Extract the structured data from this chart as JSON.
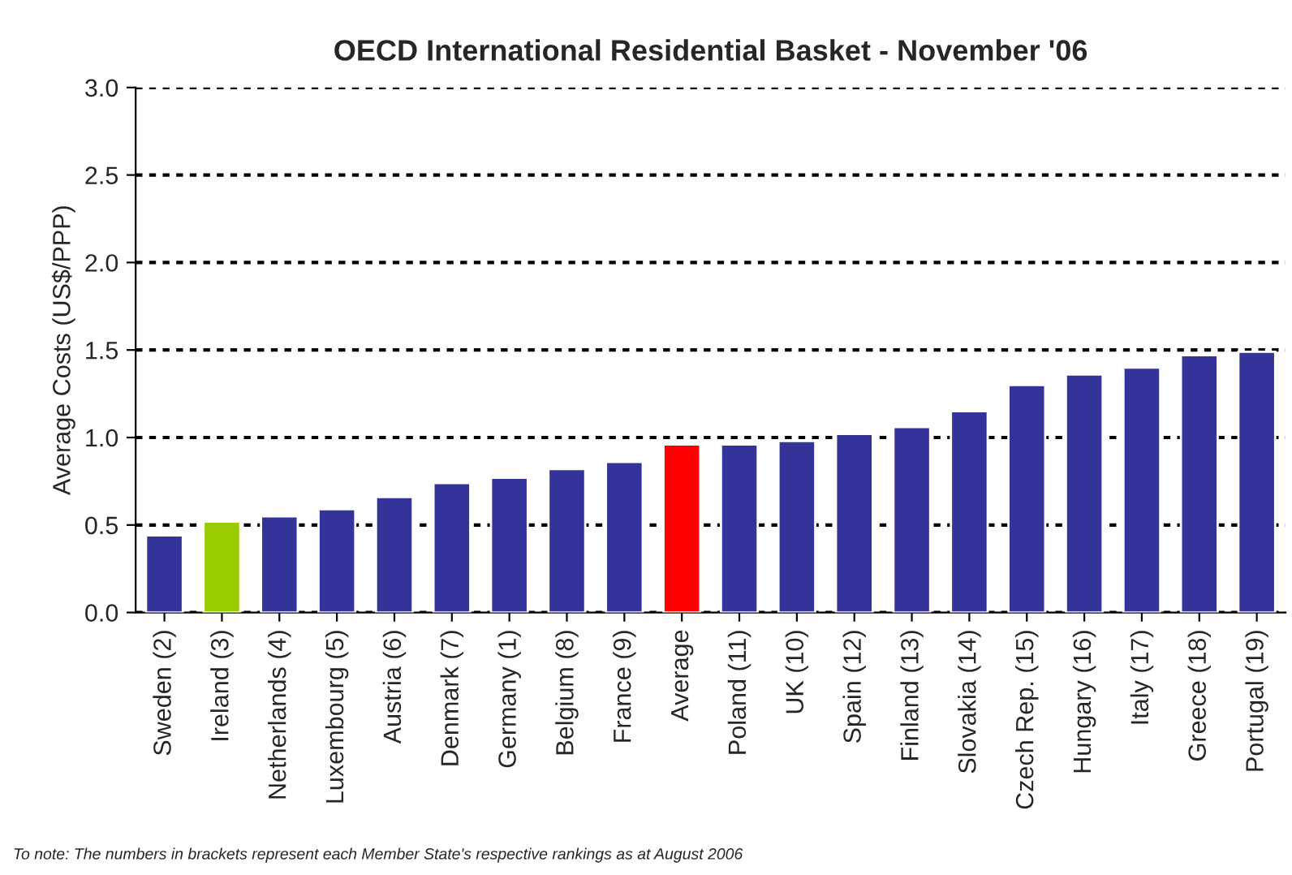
{
  "chart_data": {
    "type": "bar",
    "title": "OECD International Residential Basket - November '06",
    "ylabel": "Average Costs (US$/PPP)",
    "categories": [
      "Sweden (2)",
      "Ireland (3)",
      "Netherlands (4)",
      "Luxembourg (5)",
      "Austria (6)",
      "Denmark (7)",
      "Germany (1)",
      "Belgium (8)",
      "France (9)",
      "Average",
      "Poland (11)",
      "UK (10)",
      "Spain (12)",
      "Finland (13)",
      "Slovakia (14)",
      "Czech Rep. (15)",
      "Hungary (16)",
      "Italy (17)",
      "Greece (18)",
      "Portugal (19)"
    ],
    "values": [
      0.44,
      0.52,
      0.55,
      0.59,
      0.66,
      0.74,
      0.77,
      0.82,
      0.86,
      0.96,
      0.96,
      0.98,
      1.02,
      1.06,
      1.15,
      1.3,
      1.36,
      1.4,
      1.47,
      1.49
    ],
    "colors": [
      "#333399",
      "#99cc00",
      "#333399",
      "#333399",
      "#333399",
      "#333399",
      "#333399",
      "#333399",
      "#333399",
      "#ff0000",
      "#333399",
      "#333399",
      "#333399",
      "#333399",
      "#333399",
      "#333399",
      "#333399",
      "#333399",
      "#333399",
      "#333399"
    ],
    "ylim": [
      0,
      3
    ],
    "yticks": [
      {
        "value": 0,
        "label": "0.0"
      },
      {
        "value": 0.5,
        "label": "0.5"
      },
      {
        "value": 1,
        "label": "1.0"
      },
      {
        "value": 1.5,
        "label": "1.5"
      },
      {
        "value": 2,
        "label": "2.0"
      },
      {
        "value": 2.5,
        "label": "2.5"
      },
      {
        "value": 3,
        "label": "3.0"
      }
    ],
    "grid": "y",
    "legend": false,
    "annotations": [
      "To note: The numbers in brackets represent each Member State's respective rankings as at August 2006"
    ]
  }
}
